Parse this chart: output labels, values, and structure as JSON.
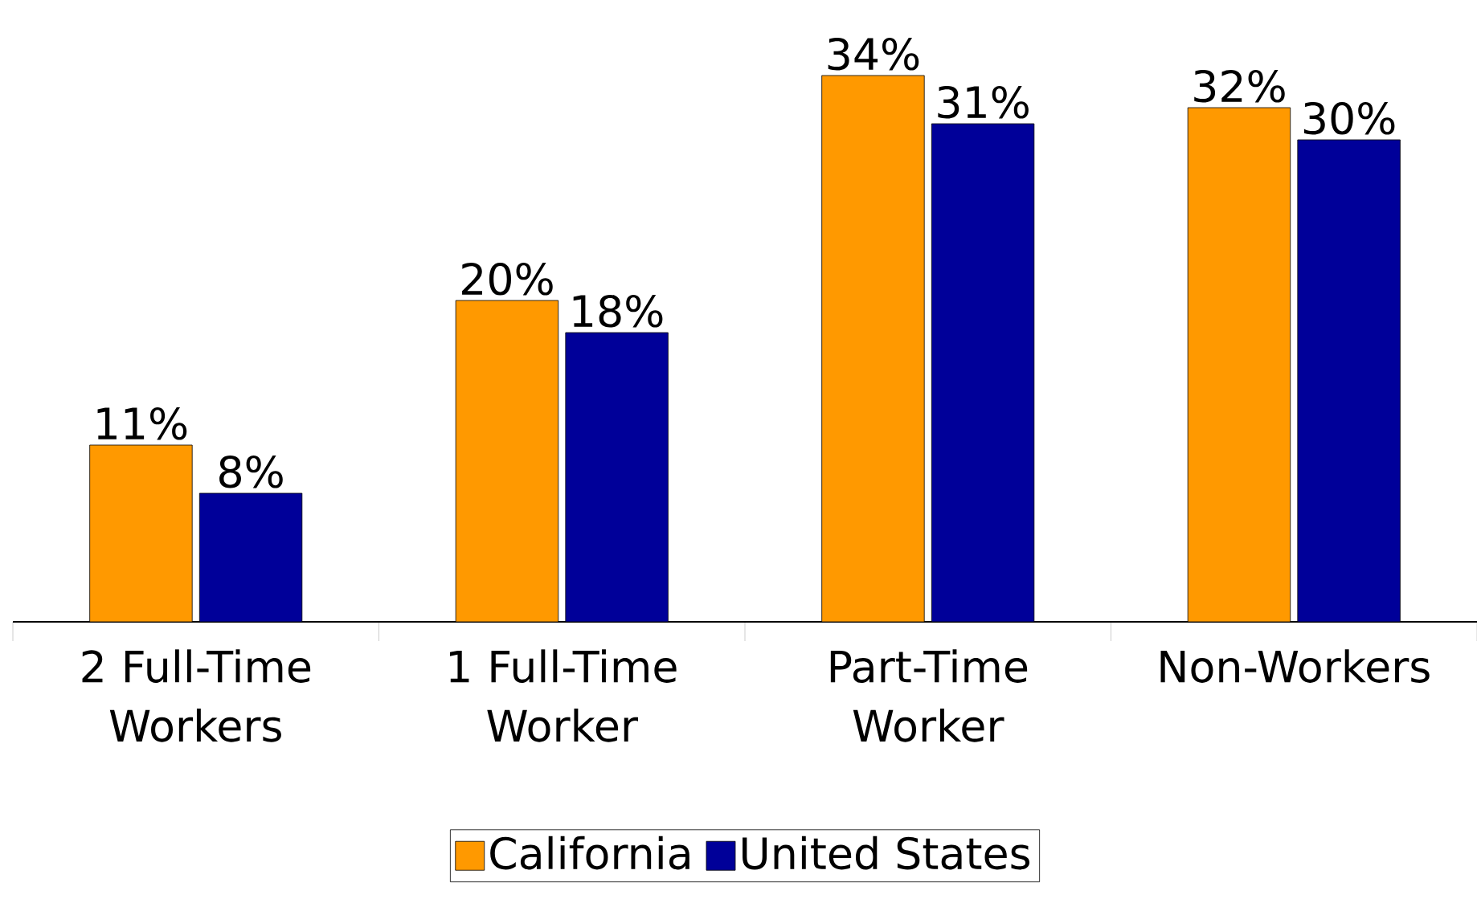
{
  "chart_data": {
    "type": "bar",
    "categories": [
      "2 Full-Time Workers",
      "1 Full-Time Worker",
      "Part-Time Worker",
      "Non-Workers"
    ],
    "series": [
      {
        "name": "California",
        "color": "#ff9900",
        "values": [
          11,
          20,
          34,
          32
        ],
        "value_labels": [
          "11%",
          "20%",
          "34%",
          "32%"
        ]
      },
      {
        "name": "United States",
        "color": "#000099",
        "values": [
          8,
          18,
          31,
          30
        ],
        "value_labels": [
          "8%",
          "18%",
          "31%",
          "30%"
        ]
      }
    ],
    "legend": "bottom"
  }
}
